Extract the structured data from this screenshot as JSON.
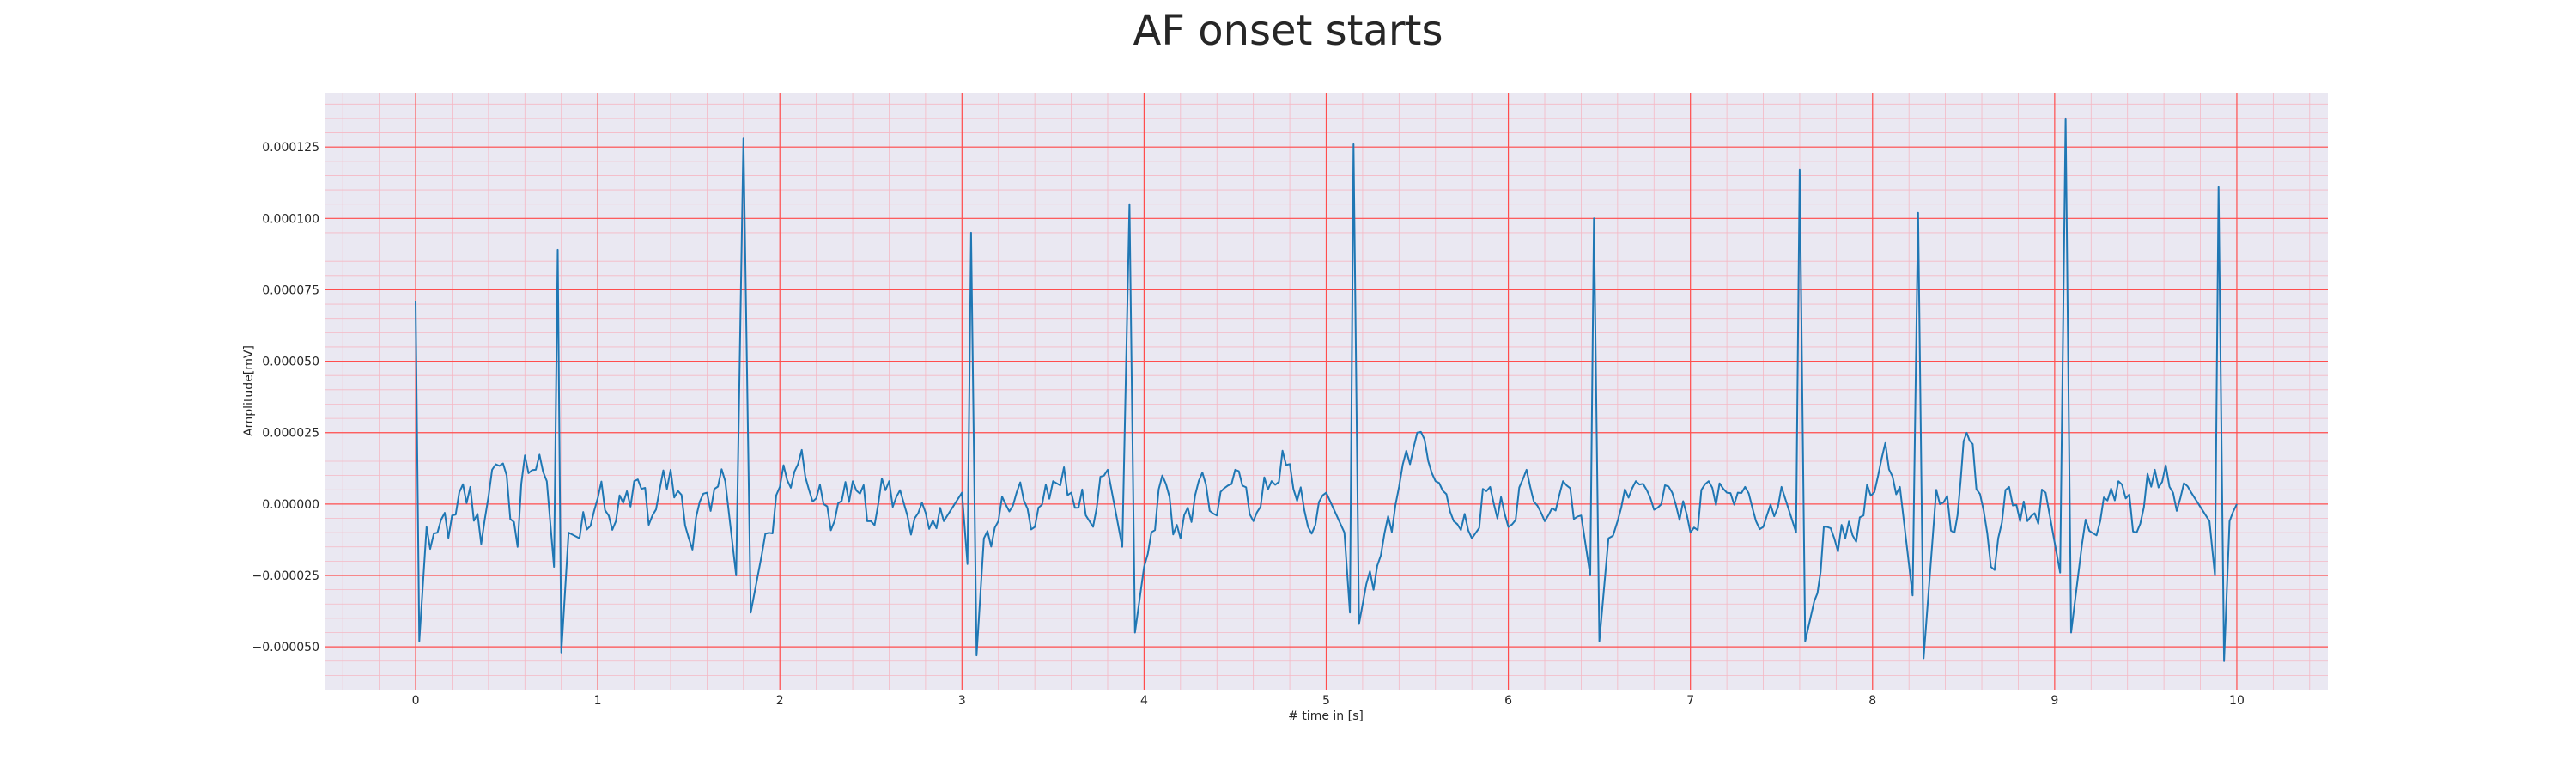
{
  "chart_data": {
    "type": "line",
    "title": "AF onset starts",
    "xlabel": "# time in [s]",
    "ylabel": "Amplitude[mV]",
    "xlim": [
      -0.5,
      10.5
    ],
    "ylim": [
      -6.5e-05,
      0.000144
    ],
    "xticks": [
      0,
      1,
      2,
      3,
      4,
      5,
      6,
      7,
      8,
      9,
      10
    ],
    "xtick_labels": [
      "0",
      "1",
      "2",
      "3",
      "4",
      "5",
      "6",
      "7",
      "8",
      "9",
      "10"
    ],
    "yticks": [
      -5e-05,
      -2.5e-05,
      0,
      2.5e-05,
      5e-05,
      7.5e-05,
      0.0001,
      0.000125
    ],
    "ytick_labels": [
      "−0.000050",
      "−0.000025",
      "0.000000",
      "0.000025",
      "0.000050",
      "0.000075",
      "0.000100",
      "0.000125"
    ],
    "grid": "ecg paper (major red lines every 1 s / 0.000025 mV, minor pink lines)",
    "colors": {
      "line": "#1f77b4",
      "background": "#eae8f2",
      "major_grid": "#ff4d4d",
      "minor_grid": "#f5b8c4"
    },
    "r_peaks": [
      {
        "t": 0.0,
        "r": 7.1e-05,
        "s": -4.8e-05
      },
      {
        "t": 0.78,
        "r": 8.9e-05,
        "s": -5.2e-05
      },
      {
        "t": 1.8,
        "r": 0.000128,
        "s": -3.8e-05
      },
      {
        "t": 3.05,
        "r": 9.5e-05,
        "s": -5.3e-05
      },
      {
        "t": 3.92,
        "r": 0.000105,
        "s": -4.5e-05
      },
      {
        "t": 5.15,
        "r": 0.000126,
        "s": -4.2e-05
      },
      {
        "t": 6.47,
        "r": 0.0001,
        "s": -4.8e-05
      },
      {
        "t": 7.6,
        "r": 0.000117,
        "s": -4.8e-05
      },
      {
        "t": 8.25,
        "r": 0.000102,
        "s": -5.4e-05
      },
      {
        "t": 9.06,
        "r": 0.000135,
        "s": -4.5e-05
      },
      {
        "t": 9.9,
        "r": 0.000111,
        "s": -5.5e-05
      }
    ],
    "series": [
      {
        "x": [
          0.0,
          0.02,
          0.06,
          0.12,
          0.2,
          0.3,
          0.36,
          0.42,
          0.5,
          0.56,
          0.6,
          0.66,
          0.72,
          0.76,
          0.78,
          0.8,
          0.84,
          0.9,
          1.0,
          1.1,
          1.2,
          1.3,
          1.4,
          1.5,
          1.6,
          1.7,
          1.76,
          1.8,
          1.84,
          1.9,
          2.0,
          2.1,
          2.2,
          2.3,
          2.4,
          2.5,
          2.6,
          2.7,
          2.8,
          2.9,
          3.0,
          3.03,
          3.05,
          3.08,
          3.12,
          3.2,
          3.3,
          3.4,
          3.5,
          3.6,
          3.7,
          3.8,
          3.88,
          3.92,
          3.95,
          4.0,
          4.1,
          4.2,
          4.3,
          4.4,
          4.5,
          4.6,
          4.7,
          4.8,
          4.9,
          5.0,
          5.1,
          5.13,
          5.15,
          5.18,
          5.22,
          5.3,
          5.4,
          5.5,
          5.6,
          5.7,
          5.8,
          5.9,
          6.0,
          6.1,
          6.2,
          6.3,
          6.4,
          6.45,
          6.47,
          6.5,
          6.55,
          6.6,
          6.7,
          6.8,
          6.9,
          7.0,
          7.1,
          7.2,
          7.3,
          7.4,
          7.5,
          7.58,
          7.6,
          7.63,
          7.68,
          7.75,
          7.85,
          7.95,
          8.05,
          8.15,
          8.22,
          8.25,
          8.28,
          8.35,
          8.45,
          8.5,
          8.55,
          8.65,
          8.75,
          8.85,
          8.95,
          9.03,
          9.06,
          9.09,
          9.15,
          9.25,
          9.35,
          9.45,
          9.55,
          9.65,
          9.75,
          9.85,
          9.88,
          9.9,
          9.93,
          9.96,
          10.0
        ],
        "y": [
          7.1e-05,
          -4.8e-05,
          -8e-06,
          -1e-05,
          -4e-06,
          6e-06,
          -1.4e-05,
          1.2e-05,
          1e-05,
          -1.5e-05,
          1.7e-05,
          1.2e-05,
          8e-06,
          -2.2e-05,
          8.9e-05,
          -5.2e-05,
          -1e-05,
          -1.2e-05,
          2e-06,
          -6e-06,
          8e-06,
          -4e-06,
          1.2e-05,
          -1.2e-05,
          4e-06,
          8e-06,
          -2.5e-05,
          0.000128,
          -3.8e-05,
          -1.8e-05,
          6e-06,
          1.4e-05,
          2e-06,
          -6e-06,
          8e-06,
          -6e-06,
          8e-06,
          -4e-06,
          -3e-06,
          -6e-06,
          4e-06,
          -2.1e-05,
          9.5e-05,
          -5.3e-05,
          -1.2e-05,
          -6e-06,
          4e-06,
          -8e-06,
          8e-06,
          4e-06,
          -6e-06,
          1.2e-05,
          -1.5e-05,
          0.000105,
          -4.5e-05,
          -2.2e-05,
          1e-05,
          -1.2e-05,
          8e-06,
          -4e-06,
          1.2e-05,
          -6e-06,
          8e-06,
          1.4e-05,
          -8e-06,
          4e-06,
          -1e-05,
          -3.8e-05,
          0.000126,
          -4.2e-05,
          -2.8e-05,
          -1.8e-05,
          6e-06,
          2.5e-05,
          8e-06,
          -6e-06,
          -1.2e-05,
          6e-06,
          -8e-06,
          1.2e-05,
          -6e-06,
          8e-06,
          -4e-06,
          -2.5e-05,
          0.0001,
          -4.8e-05,
          -1.2e-05,
          -6e-06,
          8e-06,
          -2e-06,
          4e-06,
          -1e-05,
          8e-06,
          4e-06,
          6e-06,
          -8e-06,
          6e-06,
          -1e-05,
          0.000117,
          -4.8e-05,
          -3.4e-05,
          -8e-06,
          -1.2e-05,
          -4e-06,
          1.6e-05,
          6e-06,
          -3.2e-05,
          0.000102,
          -5.4e-05,
          5e-06,
          -1e-05,
          2.2e-05,
          2.1e-05,
          -2.2e-05,
          6e-06,
          -6e-06,
          4e-06,
          -2.4e-05,
          0.000135,
          -4.5e-05,
          -1.4e-05,
          -6e-06,
          8e-06,
          -1e-05,
          1.2e-05,
          4e-06,
          4e-06,
          -6e-06,
          -2.5e-05,
          0.000111,
          -5.5e-05,
          -6e-06,
          0.0
        ]
      }
    ]
  }
}
